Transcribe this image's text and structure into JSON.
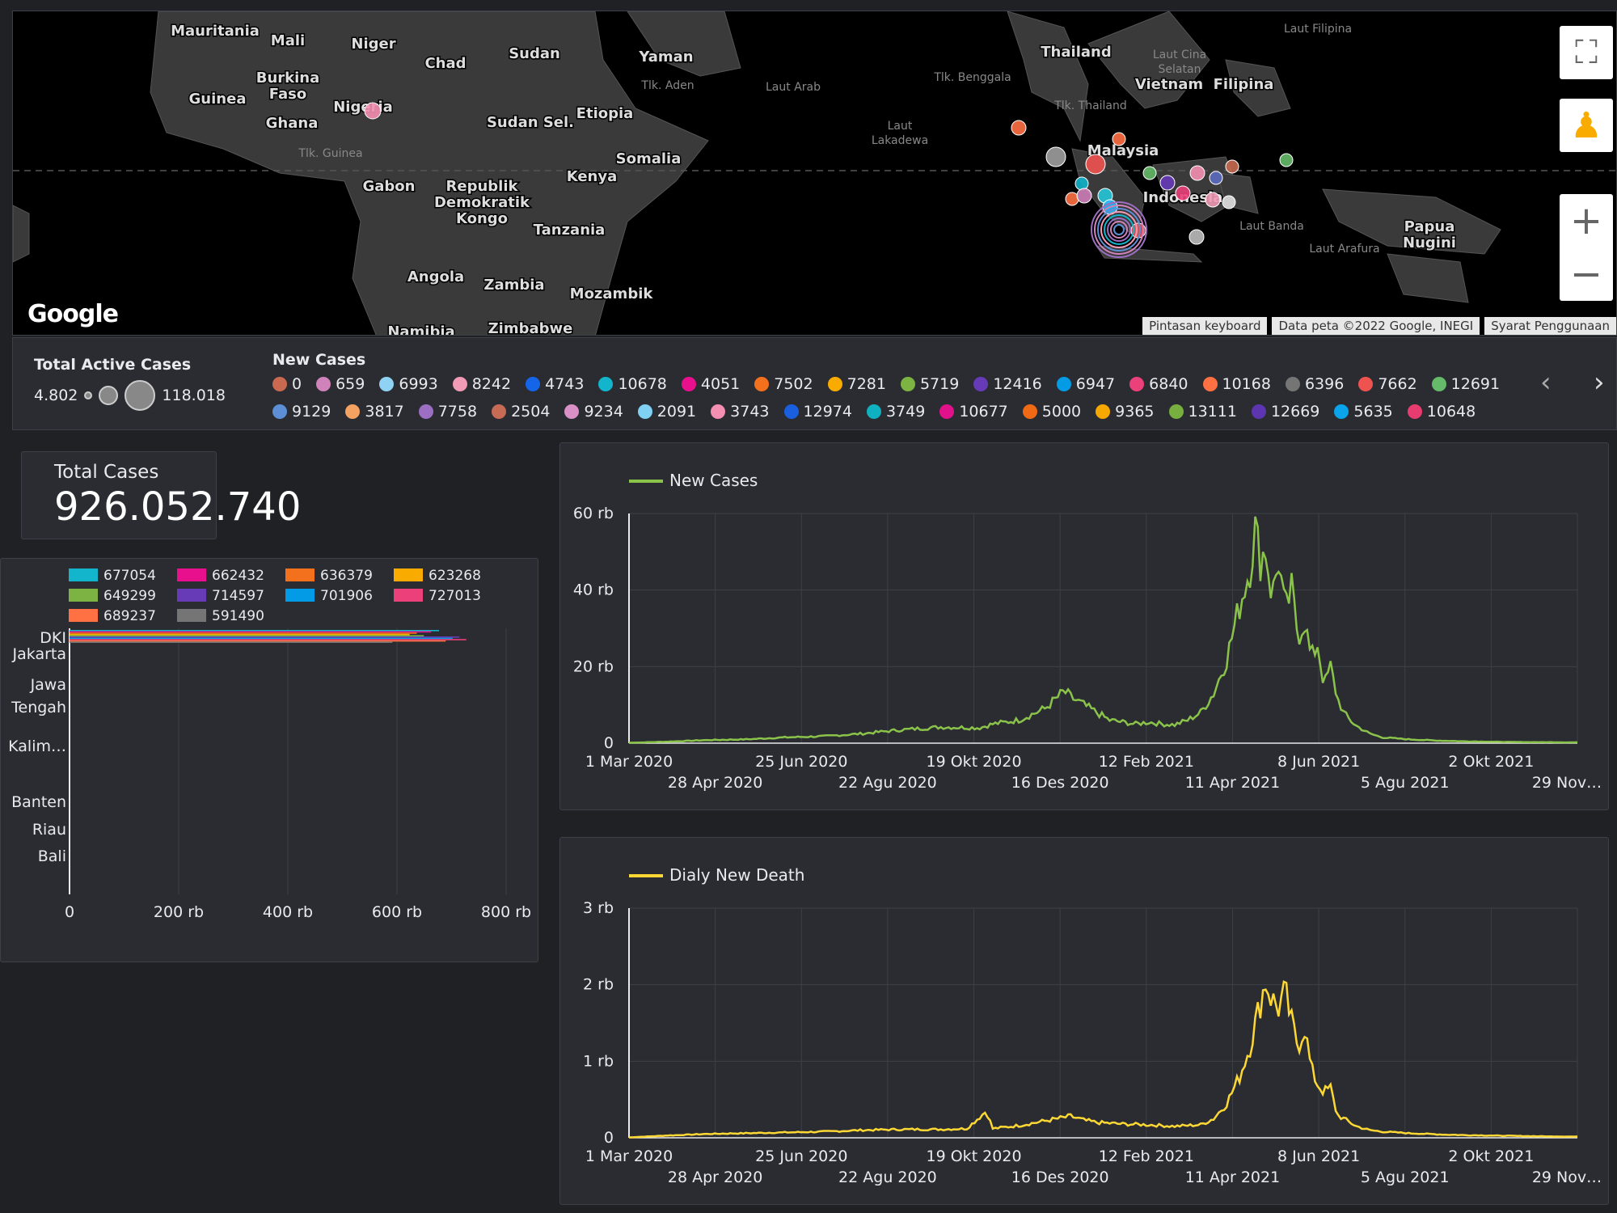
{
  "map": {
    "labels": [
      {
        "text": "Mauritania",
        "x": 250,
        "y": 30
      },
      {
        "text": "Mali",
        "x": 340,
        "y": 42
      },
      {
        "text": "Niger",
        "x": 446,
        "y": 46
      },
      {
        "text": "Chad",
        "x": 535,
        "y": 70
      },
      {
        "text": "Sudan",
        "x": 645,
        "y": 58
      },
      {
        "text": "Yaman",
        "x": 808,
        "y": 62
      },
      {
        "text": "Burkina",
        "x": 340,
        "y": 88
      },
      {
        "text": "Faso",
        "x": 340,
        "y": 108
      },
      {
        "text": "Guinea",
        "x": 253,
        "y": 114
      },
      {
        "text": "Nigeria",
        "x": 433,
        "y": 124
      },
      {
        "text": "Ghana",
        "x": 345,
        "y": 144
      },
      {
        "text": "Sudan Sel.",
        "x": 640,
        "y": 143
      },
      {
        "text": "Etiopia",
        "x": 732,
        "y": 132
      },
      {
        "text": "Somalia",
        "x": 786,
        "y": 188
      },
      {
        "text": "Kenya",
        "x": 716,
        "y": 210
      },
      {
        "text": "Gabon",
        "x": 465,
        "y": 222
      },
      {
        "text": "Republik",
        "x": 580,
        "y": 222
      },
      {
        "text": "Demokratik",
        "x": 580,
        "y": 242
      },
      {
        "text": "Kongo",
        "x": 580,
        "y": 262
      },
      {
        "text": "Tanzania",
        "x": 688,
        "y": 276
      },
      {
        "text": "Angola",
        "x": 523,
        "y": 334
      },
      {
        "text": "Zambia",
        "x": 620,
        "y": 344
      },
      {
        "text": "Mozambik",
        "x": 740,
        "y": 355
      },
      {
        "text": "Namibia",
        "x": 505,
        "y": 402
      },
      {
        "text": "Zimbabwe",
        "x": 640,
        "y": 398
      },
      {
        "text": "Thailand",
        "x": 1315,
        "y": 56
      },
      {
        "text": "Vietnam",
        "x": 1430,
        "y": 96
      },
      {
        "text": "Filipina",
        "x": 1522,
        "y": 96
      },
      {
        "text": "Malaysia",
        "x": 1373,
        "y": 178
      },
      {
        "text": "Indonesia",
        "x": 1447,
        "y": 236
      },
      {
        "text": "Papua",
        "x": 1752,
        "y": 272
      },
      {
        "text": "Nugini",
        "x": 1752,
        "y": 292
      }
    ],
    "small_labels": [
      {
        "text": "Laut Arab",
        "x": 965,
        "y": 98
      },
      {
        "text": "Tlk. Benggala",
        "x": 1187,
        "y": 86
      },
      {
        "text": "Laut Cina",
        "x": 1443,
        "y": 58
      },
      {
        "text": "Selatan",
        "x": 1443,
        "y": 76
      },
      {
        "text": "Tlk. Aden",
        "x": 810,
        "y": 96
      },
      {
        "text": "Tlk. Guinea",
        "x": 393,
        "y": 180
      },
      {
        "text": "Tlk. Thailand",
        "x": 1333,
        "y": 121
      },
      {
        "text": "Laut",
        "x": 1097,
        "y": 146
      },
      {
        "text": "Lakadewa",
        "x": 1097,
        "y": 164
      },
      {
        "text": "Laut Banda",
        "x": 1557,
        "y": 270
      },
      {
        "text": "Laut Arafura",
        "x": 1647,
        "y": 298
      },
      {
        "text": "Laut Filipina",
        "x": 1614,
        "y": 26
      }
    ],
    "footer": [
      "Pintasan keyboard",
      "Data peta ©2022 Google, INEGI",
      "Syarat Penggunaan"
    ],
    "logo": "Google"
  },
  "legend": {
    "active_title": "Total Active Cases",
    "active_min": "4.802",
    "active_max": "118.018",
    "new_cases_title": "New Cases",
    "items": [
      {
        "label": "0",
        "color": "#c96a50"
      },
      {
        "label": "659",
        "color": "#d083bb"
      },
      {
        "label": "6993",
        "color": "#8fd2f3"
      },
      {
        "label": "8242",
        "color": "#f29ab6"
      },
      {
        "label": "4743",
        "color": "#1565e8"
      },
      {
        "label": "10678",
        "color": "#12b5cb"
      },
      {
        "label": "4051",
        "color": "#e8108c"
      },
      {
        "label": "7502",
        "color": "#f3701c"
      },
      {
        "label": "7281",
        "color": "#f9ab00"
      },
      {
        "label": "5719",
        "color": "#7cb342"
      },
      {
        "label": "12416",
        "color": "#673ab7"
      },
      {
        "label": "6947",
        "color": "#039be5"
      },
      {
        "label": "6840",
        "color": "#ec407a"
      },
      {
        "label": "10168",
        "color": "#ff7043"
      },
      {
        "label": "6396",
        "color": "#757575"
      },
      {
        "label": "7662",
        "color": "#ef5350"
      },
      {
        "label": "12691",
        "color": "#66bb6a"
      },
      {
        "label": "9129",
        "color": "#5c8fd6"
      },
      {
        "label": "3817",
        "color": "#f4a261"
      },
      {
        "label": "7758",
        "color": "#9c6fc3"
      },
      {
        "label": "2504",
        "color": "#c76b55"
      },
      {
        "label": "9234",
        "color": "#d890c6"
      },
      {
        "label": "2091",
        "color": "#7fd0f2"
      },
      {
        "label": "3743",
        "color": "#f48fb1"
      },
      {
        "label": "12974",
        "color": "#1a5fe0"
      },
      {
        "label": "3749",
        "color": "#0fb0c0"
      },
      {
        "label": "10677",
        "color": "#e0118a"
      },
      {
        "label": "5000",
        "color": "#f06a16"
      },
      {
        "label": "9365",
        "color": "#f6a800"
      },
      {
        "label": "13111",
        "color": "#78b040"
      },
      {
        "label": "12669",
        "color": "#5e35b1"
      },
      {
        "label": "5635",
        "color": "#0aa4ec"
      },
      {
        "label": "10648",
        "color": "#e83c70"
      }
    ]
  },
  "total_cases": {
    "label": "Total Cases",
    "value": "926.052.740"
  },
  "bar_chart": {
    "legend": [
      {
        "label": "677054",
        "color": "#12b5cb"
      },
      {
        "label": "662432",
        "color": "#e8108c"
      },
      {
        "label": "636379",
        "color": "#f3701c"
      },
      {
        "label": "623268",
        "color": "#f9ab00"
      },
      {
        "label": "649299",
        "color": "#7cb342"
      },
      {
        "label": "714597",
        "color": "#673ab7"
      },
      {
        "label": "701906",
        "color": "#039be5"
      },
      {
        "label": "727013",
        "color": "#ec407a"
      },
      {
        "label": "689237",
        "color": "#ff7043"
      },
      {
        "label": "591490",
        "color": "#757575"
      }
    ],
    "categories": [
      [
        "DKI",
        "Jakarta"
      ],
      [
        "Jawa",
        "Tengah"
      ],
      [
        "Kalim…"
      ],
      [
        "Banten"
      ],
      [
        "Riau"
      ],
      [
        "Bali"
      ]
    ],
    "ticks": [
      "0",
      "200 rb",
      "400 rb",
      "600 rb",
      "800 rb"
    ]
  },
  "chart_data": [
    {
      "type": "bar",
      "orientation": "horizontal",
      "categories": [
        "DKI Jakarta",
        "Jawa Tengah",
        "Kalim…",
        "Banten",
        "Riau",
        "Bali"
      ],
      "series": [
        {
          "name": "677054",
          "values": [
            677054,
            0,
            0,
            0,
            0,
            0
          ]
        },
        {
          "name": "662432",
          "values": [
            662432,
            0,
            0,
            0,
            0,
            0
          ]
        },
        {
          "name": "636379",
          "values": [
            636379,
            0,
            0,
            0,
            0,
            0
          ]
        },
        {
          "name": "623268",
          "values": [
            623268,
            0,
            0,
            0,
            0,
            0
          ]
        },
        {
          "name": "649299",
          "values": [
            649299,
            0,
            0,
            0,
            0,
            0
          ]
        },
        {
          "name": "714597",
          "values": [
            714597,
            0,
            0,
            0,
            0,
            0
          ]
        },
        {
          "name": "701906",
          "values": [
            701906,
            0,
            0,
            0,
            0,
            0
          ]
        },
        {
          "name": "727013",
          "values": [
            727013,
            0,
            0,
            0,
            0,
            0
          ]
        },
        {
          "name": "689237",
          "values": [
            689237,
            0,
            0,
            0,
            0,
            0
          ]
        },
        {
          "name": "591490",
          "values": [
            591490,
            0,
            0,
            0,
            0,
            0
          ]
        }
      ],
      "xlim": [
        0,
        800000
      ],
      "xticks": [
        "0",
        "200 rb",
        "400 rb",
        "600 rb",
        "800 rb"
      ],
      "grid": true,
      "legend_position": "top"
    },
    {
      "type": "line",
      "series": [
        {
          "name": "New Cases",
          "color": "#8bc34a"
        }
      ],
      "x_range": [
        "1 Mar 2020",
        "29 Nov 2021"
      ],
      "x_ticks_top": [
        "1 Mar 2020",
        "25 Jun 2020",
        "19 Okt 2020",
        "12 Feb 2021",
        "8 Jun 2021",
        "2 Okt 2021"
      ],
      "x_ticks_bottom": [
        "28 Apr 2020",
        "22 Agu 2020",
        "16 Des 2020",
        "11 Apr 2021",
        "5 Agu 2021",
        "29 Nov…"
      ],
      "y_ticks": [
        "0",
        "20 rb",
        "40 rb",
        "60 rb"
      ],
      "ylim": [
        0,
        60000
      ],
      "points": [
        [
          0,
          100
        ],
        [
          30,
          400
        ],
        [
          60,
          800
        ],
        [
          90,
          1000
        ],
        [
          120,
          1500
        ],
        [
          150,
          1800
        ],
        [
          180,
          2500
        ],
        [
          210,
          3500
        ],
        [
          240,
          4200
        ],
        [
          270,
          4000
        ],
        [
          280,
          5000
        ],
        [
          300,
          6000
        ],
        [
          310,
          7500
        ],
        [
          320,
          9000
        ],
        [
          330,
          12000
        ],
        [
          335,
          13500
        ],
        [
          340,
          12000
        ],
        [
          350,
          10000
        ],
        [
          360,
          8000
        ],
        [
          370,
          6000
        ],
        [
          380,
          5500
        ],
        [
          390,
          5000
        ],
        [
          400,
          5500
        ],
        [
          410,
          5000
        ],
        [
          420,
          4800
        ],
        [
          430,
          6000
        ],
        [
          440,
          8000
        ],
        [
          450,
          13000
        ],
        [
          460,
          22000
        ],
        [
          470,
          36000
        ],
        [
          478,
          46000
        ],
        [
          482,
          56000
        ],
        [
          486,
          48000
        ],
        [
          490,
          51000
        ],
        [
          495,
          38000
        ],
        [
          500,
          48000
        ],
        [
          505,
          34000
        ],
        [
          510,
          40000
        ],
        [
          515,
          28000
        ],
        [
          520,
          32000
        ],
        [
          525,
          22000
        ],
        [
          530,
          26000
        ],
        [
          535,
          15000
        ],
        [
          540,
          20000
        ],
        [
          545,
          12000
        ],
        [
          550,
          8000
        ],
        [
          555,
          6000
        ],
        [
          560,
          4500
        ],
        [
          570,
          2500
        ],
        [
          580,
          1500
        ],
        [
          600,
          1000
        ],
        [
          620,
          700
        ],
        [
          640,
          500
        ],
        [
          660,
          400
        ],
        [
          680,
          300
        ],
        [
          700,
          250
        ],
        [
          730,
          200
        ]
      ],
      "grid": true,
      "legend_position": "top-left"
    },
    {
      "type": "line",
      "series": [
        {
          "name": "Dialy New Death",
          "color": "#fdd835"
        }
      ],
      "x_range": [
        "1 Mar 2020",
        "29 Nov 2021"
      ],
      "x_ticks_top": [
        "1 Mar 2020",
        "25 Jun 2020",
        "19 Okt 2020",
        "12 Feb 2021",
        "8 Jun 2021",
        "2 Okt 2021"
      ],
      "x_ticks_bottom": [
        "28 Apr 2020",
        "22 Agu 2020",
        "16 Des 2020",
        "11 Apr 2021",
        "5 Agu 2021",
        "29 Nov…"
      ],
      "y_ticks": [
        "0",
        "1 rb",
        "2 rb",
        "3 rb"
      ],
      "ylim": [
        0,
        3000
      ],
      "points": [
        [
          0,
          5
        ],
        [
          30,
          30
        ],
        [
          60,
          50
        ],
        [
          90,
          60
        ],
        [
          120,
          70
        ],
        [
          150,
          80
        ],
        [
          180,
          100
        ],
        [
          210,
          110
        ],
        [
          240,
          110
        ],
        [
          260,
          120
        ],
        [
          275,
          350
        ],
        [
          280,
          120
        ],
        [
          300,
          160
        ],
        [
          320,
          220
        ],
        [
          340,
          280
        ],
        [
          350,
          230
        ],
        [
          360,
          200
        ],
        [
          380,
          180
        ],
        [
          400,
          170
        ],
        [
          420,
          150
        ],
        [
          440,
          170
        ],
        [
          450,
          250
        ],
        [
          460,
          450
        ],
        [
          470,
          800
        ],
        [
          478,
          1200
        ],
        [
          485,
          1700
        ],
        [
          490,
          2050
        ],
        [
          495,
          1800
        ],
        [
          500,
          1700
        ],
        [
          505,
          1900
        ],
        [
          510,
          1500
        ],
        [
          515,
          1200
        ],
        [
          520,
          1450
        ],
        [
          525,
          900
        ],
        [
          530,
          700
        ],
        [
          535,
          600
        ],
        [
          540,
          650
        ],
        [
          545,
          300
        ],
        [
          550,
          250
        ],
        [
          560,
          150
        ],
        [
          570,
          100
        ],
        [
          580,
          80
        ],
        [
          600,
          60
        ],
        [
          630,
          40
        ],
        [
          660,
          30
        ],
        [
          700,
          20
        ],
        [
          730,
          15
        ]
      ],
      "grid": true,
      "legend_position": "top-left"
    }
  ]
}
